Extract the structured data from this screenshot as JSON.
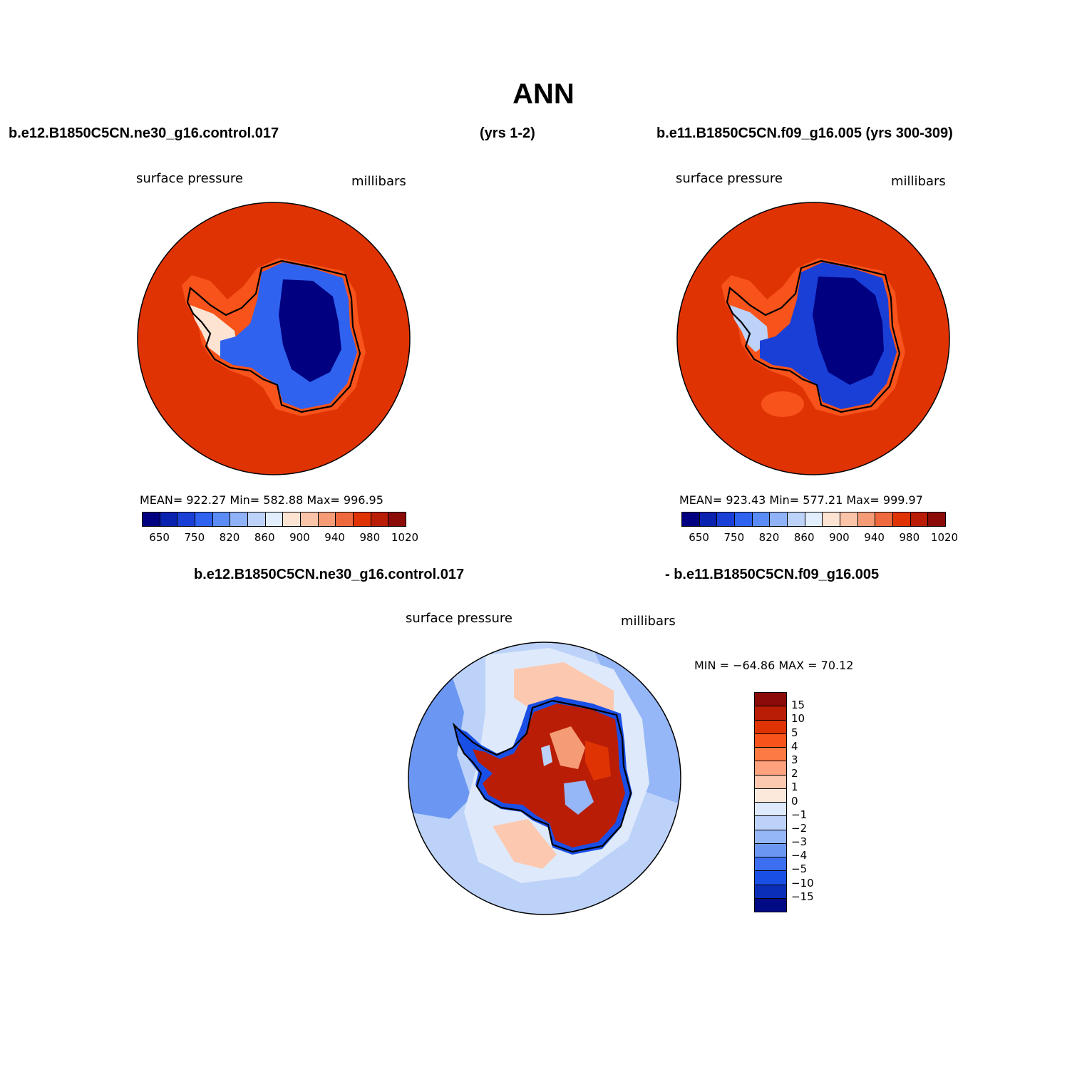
{
  "title": "ANN",
  "header": {
    "left_case": "b.e12.B1850C5CN.ne30_g16.control.017",
    "left_years": "(yrs 1-2)",
    "right_case": "b.e11.B1850C5CN.f09_g16.005 (yrs 300-309)",
    "diff_case_a": "b.e12.B1850C5CN.ne30_g16.control.017",
    "diff_case_b": "- b.e11.B1850C5CN.f09_g16.005"
  },
  "panels": [
    {
      "variable": "surface pressure",
      "units": "millibars",
      "stats": "MEAN= 922.27   Min= 582.88   Max= 996.95",
      "ocean_color": "#e03304"
    },
    {
      "variable": "surface pressure",
      "units": "millibars",
      "stats": "MEAN= 923.43   Min= 577.21   Max= 999.97",
      "ocean_color": "#e03304"
    }
  ],
  "abs_colorbar": {
    "colors": [
      "#000080",
      "#0a22b0",
      "#1a3fd6",
      "#2f62ee",
      "#5b8cf5",
      "#8fb2f8",
      "#bcd2f9",
      "#e2eefb",
      "#fde3d2",
      "#fbc4a8",
      "#f59b76",
      "#ee6a3e",
      "#e03304",
      "#b91d05",
      "#8a0b08"
    ],
    "ticks": [
      "650",
      "750",
      "820",
      "860",
      "900",
      "940",
      "980",
      "1020"
    ]
  },
  "diff_panel": {
    "variable": "surface pressure",
    "units": "millibars",
    "minmax": "MIN = −64.86 MAX =   70.12"
  },
  "diff_colorbar": {
    "colors_top_to_bottom": [
      "#8a0b08",
      "#b91d05",
      "#e03304",
      "#f7531a",
      "#fd7a42",
      "#fda27d",
      "#fcc9b0",
      "#fde9dc",
      "#deeafb",
      "#bcd2f9",
      "#95b6f7",
      "#6b97f2",
      "#3c6ff0",
      "#1a4fe6",
      "#0a2eb8",
      "#000a85"
    ],
    "ticks": [
      "15",
      "10",
      "5",
      "4",
      "3",
      "2",
      "1",
      "0",
      "−1",
      "−2",
      "−3",
      "−4",
      "−5",
      "−10",
      "−15"
    ]
  }
}
